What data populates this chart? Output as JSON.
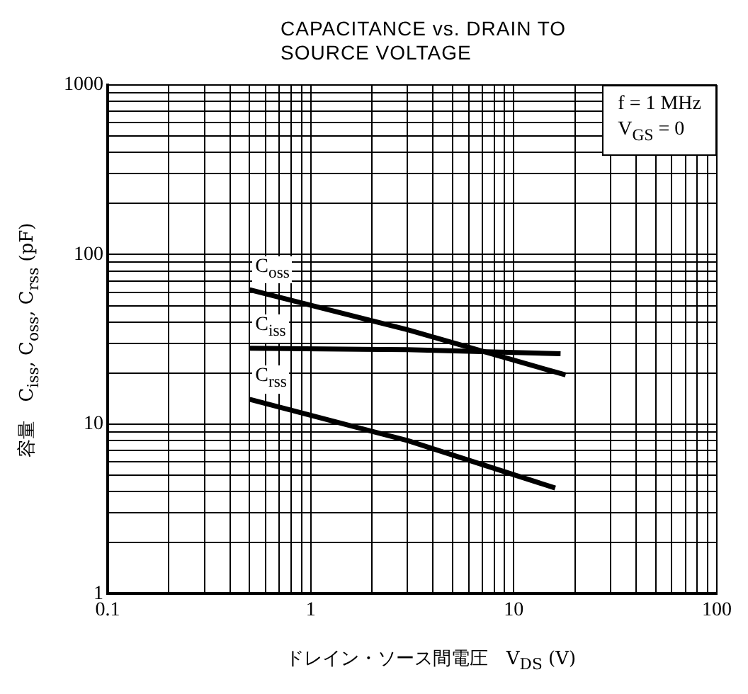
{
  "chart_data": {
    "type": "line",
    "title": "CAPACITANCE vs. DRAIN TO SOURCE VOLTAGE",
    "xlabel": "ドレイン・ソース間電圧　V$_{DS}$ (V)",
    "ylabel": "容量　C$_{iss}$, C$_{oss}$, C$_{rss}$ (pF)",
    "annotations": [
      "f = 1 MHz",
      "V$_{GS}$ = 0"
    ],
    "log": "xy",
    "grid": true,
    "legend": false,
    "marker": "none",
    "line_style": "solid",
    "xlim": [
      0.1,
      100
    ],
    "ylim": [
      1,
      1000
    ],
    "xticks": [
      0.1,
      {
        "value": 0.2,
        "label": null
      },
      {
        "value": 0.3,
        "label": null
      },
      {
        "value": 0.4,
        "label": null
      },
      {
        "value": 0.5,
        "label": null
      },
      {
        "value": 0.6,
        "label": null
      },
      {
        "value": 0.7,
        "label": null
      },
      {
        "value": 0.8,
        "label": null
      },
      {
        "value": 0.9,
        "label": null
      },
      1,
      {
        "value": 2,
        "label": null
      },
      {
        "value": 3,
        "label": null
      },
      {
        "value": 4,
        "label": null
      },
      {
        "value": 5,
        "label": null
      },
      {
        "value": 6,
        "label": null
      },
      {
        "value": 7,
        "label": null
      },
      {
        "value": 8,
        "label": null
      },
      {
        "value": 9,
        "label": null
      },
      10,
      {
        "value": 20,
        "label": null
      },
      {
        "value": 30,
        "label": null
      },
      {
        "value": 40,
        "label": null
      },
      {
        "value": 50,
        "label": null
      },
      {
        "value": 60,
        "label": null
      },
      {
        "value": 70,
        "label": null
      },
      {
        "value": 80,
        "label": null
      },
      {
        "value": 90,
        "label": null
      },
      100
    ],
    "yticks": [
      1,
      {
        "value": 2,
        "label": null
      },
      {
        "value": 3,
        "label": null
      },
      {
        "value": 4,
        "label": null
      },
      {
        "value": 5,
        "label": null
      },
      {
        "value": 6,
        "label": null
      },
      {
        "value": 7,
        "label": null
      },
      {
        "value": 8,
        "label": null
      },
      {
        "value": 9,
        "label": null
      },
      10,
      {
        "value": 20,
        "label": null
      },
      {
        "value": 30,
        "label": null
      },
      {
        "value": 40,
        "label": null
      },
      {
        "value": 50,
        "label": null
      },
      {
        "value": 60,
        "label": null
      },
      {
        "value": 70,
        "label": null
      },
      {
        "value": 80,
        "label": null
      },
      {
        "value": 90,
        "label": null
      },
      100,
      {
        "value": 200,
        "label": null
      },
      {
        "value": 300,
        "label": null
      },
      {
        "value": 400,
        "label": null
      },
      {
        "value": 500,
        "label": null
      },
      {
        "value": 600,
        "label": null
      },
      {
        "value": 700,
        "label": null
      },
      {
        "value": 800,
        "label": null
      },
      {
        "value": 900,
        "label": null
      },
      1000
    ],
    "series": [
      {
        "name": "C$_{oss}$",
        "color": "#000000",
        "x": [
          0.5,
          3,
          18
        ],
        "values": [
          62,
          36,
          19.5
        ]
      },
      {
        "name": "C$_{iss}$",
        "color": "#000000",
        "x": [
          0.5,
          3,
          17
        ],
        "values": [
          28,
          27.5,
          26
        ]
      },
      {
        "name": "C$_{rss}$",
        "color": "#000000",
        "x": [
          0.5,
          3,
          16
        ],
        "values": [
          14,
          8,
          4.2
        ]
      }
    ]
  }
}
